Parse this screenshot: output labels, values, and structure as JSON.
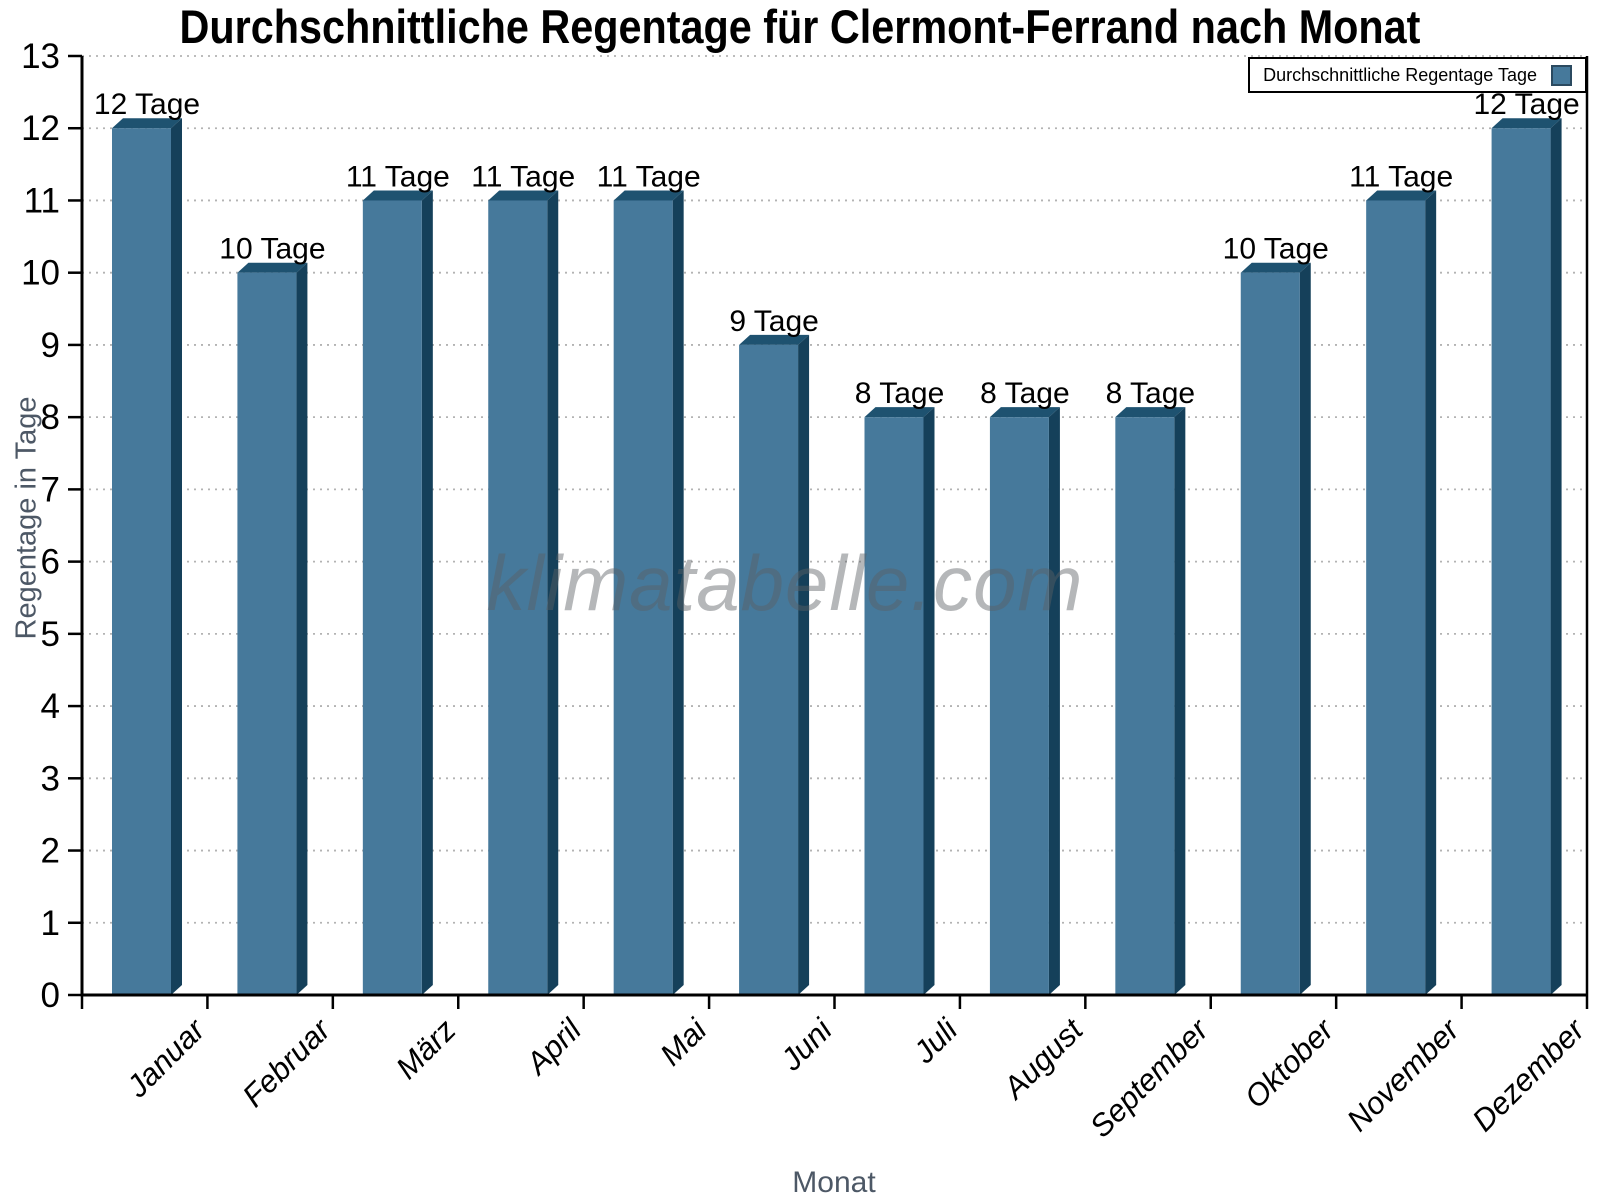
{
  "chart_data": {
    "type": "bar",
    "title": "Durchschnittliche Regentage für Clermont-Ferrand nach Monat",
    "xlabel": "Monat",
    "ylabel": "Regentage in Tage",
    "categories": [
      "Januar",
      "Februar",
      "März",
      "April",
      "Mai",
      "Juni",
      "Juli",
      "August",
      "September",
      "Oktober",
      "November",
      "Dezember"
    ],
    "values": [
      12,
      10,
      11,
      11,
      11,
      9,
      8,
      8,
      8,
      10,
      11,
      12
    ],
    "bar_labels": [
      "12 Tage",
      "10 Tage",
      "11 Tage",
      "11 Tage",
      "11 Tage",
      "9 Tage",
      "8 Tage",
      "8 Tage",
      "8 Tage",
      "10 Tage",
      "11 Tage",
      "12 Tage"
    ],
    "ylim": [
      0,
      13
    ],
    "yticks": [
      0,
      1,
      2,
      3,
      4,
      5,
      6,
      7,
      8,
      9,
      10,
      11,
      12,
      13
    ],
    "grid": "horizontal-dotted",
    "legend": {
      "label": "Durchschnittliche Regentage Tage",
      "position": "top-right"
    },
    "watermark": "klimatabelle.com",
    "colors": {
      "bar_front": "#46799B",
      "bar_top": "#1E5270",
      "bar_side": "#15405A",
      "axis": "#000000",
      "grid": "#b3b3b3",
      "axis_title": "#4d5866",
      "label_text": "#000000"
    }
  }
}
